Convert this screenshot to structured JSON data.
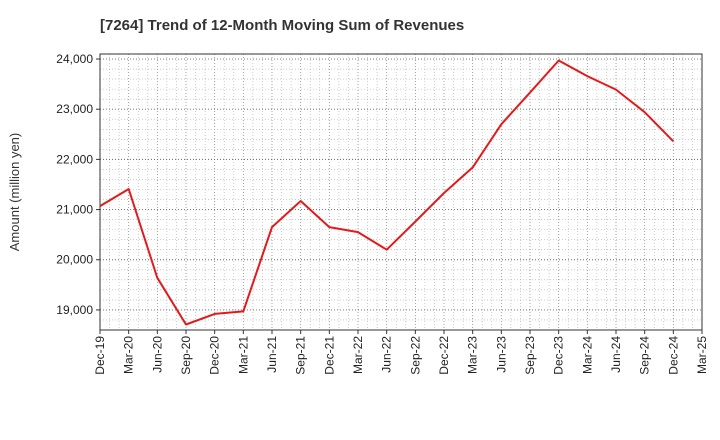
{
  "chart_data": {
    "type": "line",
    "title": "[7264]  Trend of 12-Month Moving Sum of Revenues",
    "xlabel": "",
    "ylabel": "Amount (million yen)",
    "ylim": [
      18600,
      24100
    ],
    "yticks": [
      19000,
      20000,
      21000,
      22000,
      23000,
      24000
    ],
    "ytick_labels": [
      "19,000",
      "20,000",
      "21,000",
      "22,000",
      "23,000",
      "24,000"
    ],
    "categories": [
      "Dec-19",
      "Mar-20",
      "Jun-20",
      "Sep-20",
      "Dec-20",
      "Mar-21",
      "Jun-21",
      "Sep-21",
      "Dec-21",
      "Mar-22",
      "Jun-22",
      "Sep-22",
      "Dec-22",
      "Mar-23",
      "Jun-23",
      "Sep-23",
      "Dec-23",
      "Mar-24",
      "Jun-24",
      "Sep-24",
      "Dec-24",
      "Mar-25"
    ],
    "series": [
      {
        "color": "#e31a1c",
        "values": [
          21070,
          21410,
          19640,
          18710,
          18920,
          18970,
          20650,
          21170,
          20650,
          20550,
          20200,
          20760,
          21330,
          21840,
          22700,
          23330,
          23970,
          23660,
          23390,
          22940,
          22360,
          null
        ]
      }
    ],
    "grid": true,
    "grid_style": "dotted"
  }
}
